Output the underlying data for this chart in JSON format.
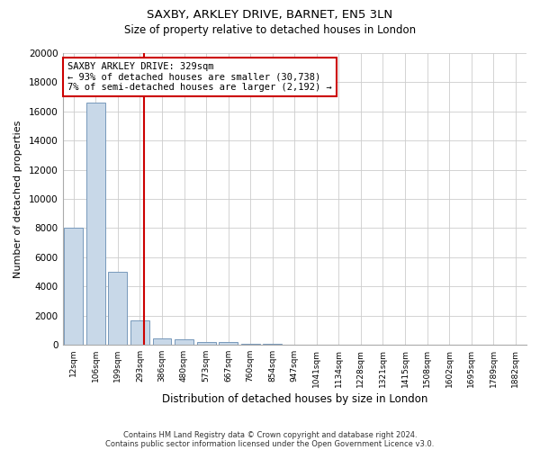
{
  "title_line1": "SAXBY, ARKLEY DRIVE, BARNET, EN5 3LN",
  "title_line2": "Size of property relative to detached houses in London",
  "xlabel": "Distribution of detached houses by size in London",
  "ylabel": "Number of detached properties",
  "footer_line1": "Contains HM Land Registry data © Crown copyright and database right 2024.",
  "footer_line2": "Contains public sector information licensed under the Open Government Licence v3.0.",
  "annotation_title": "SAXBY ARKLEY DRIVE: 329sqm",
  "annotation_line1": "← 93% of detached houses are smaller (30,738)",
  "annotation_line2": "7% of semi-detached houses are larger (2,192) →",
  "bar_color": "#c8d8e8",
  "bar_edge_color": "#7799bb",
  "vline_color": "#cc0000",
  "annotation_box_color": "#cc0000",
  "background_color": "#ffffff",
  "grid_color": "#cccccc",
  "categories": [
    "12sqm",
    "106sqm",
    "199sqm",
    "293sqm",
    "386sqm",
    "480sqm",
    "573sqm",
    "667sqm",
    "760sqm",
    "854sqm",
    "947sqm",
    "1041sqm",
    "1134sqm",
    "1228sqm",
    "1321sqm",
    "1415sqm",
    "1508sqm",
    "1602sqm",
    "1695sqm",
    "1789sqm",
    "1882sqm"
  ],
  "values": [
    8050,
    16600,
    5000,
    1700,
    450,
    350,
    190,
    160,
    90,
    50,
    0,
    0,
    0,
    0,
    0,
    0,
    0,
    0,
    0,
    0,
    0
  ],
  "ylim": [
    0,
    20000
  ],
  "yticks": [
    0,
    2000,
    4000,
    6000,
    8000,
    10000,
    12000,
    14000,
    16000,
    18000,
    20000
  ],
  "vline_x": 3.18,
  "figsize": [
    6.0,
    5.0
  ],
  "dpi": 100
}
